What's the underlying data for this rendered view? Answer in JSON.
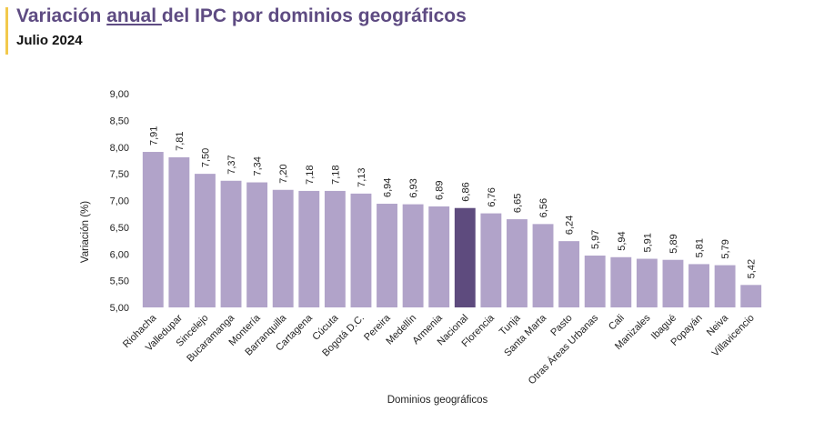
{
  "header": {
    "title_before": "Variación ",
    "title_highlight": "anual ",
    "title_after": "del IPC por dominios geográficos",
    "subtitle": "Julio 2024"
  },
  "colors": {
    "bar": "#B1A3C9",
    "highlight_bar": "#5E4B7E",
    "title": "#5E4B82",
    "accent": "#F2C94C"
  },
  "chart_data": {
    "type": "bar",
    "title": "Variación anual del IPC por dominios geográficos",
    "subtitle": "Julio 2024",
    "xlabel": "Dominios geográficos",
    "ylabel": "Variación (%)",
    "ylim": [
      5.0,
      9.0
    ],
    "yticks": [
      "5,00",
      "5,50",
      "6,00",
      "6,50",
      "7,00",
      "7,50",
      "8,00",
      "8,50",
      "9,00"
    ],
    "grid": false,
    "highlight_category": "Nacional",
    "categories": [
      "Riohacha",
      "Valledupar",
      "Sincelejo",
      "Bucaramanga",
      "Montería",
      "Barranquilla",
      "Cartagena",
      "Cúcuta",
      "Bogotá D.C.",
      "Pereira",
      "Medellín",
      "Armenia",
      "Nacional",
      "Florencia",
      "Tunja",
      "Santa Marta",
      "Pasto",
      "Otras Áreas Urbanas",
      "Cali",
      "Manizales",
      "Ibagué",
      "Popayán",
      "Neiva",
      "Villavicencio"
    ],
    "values": [
      7.91,
      7.81,
      7.5,
      7.37,
      7.34,
      7.2,
      7.18,
      7.18,
      7.13,
      6.94,
      6.93,
      6.89,
      6.86,
      6.76,
      6.65,
      6.56,
      6.24,
      5.97,
      5.94,
      5.91,
      5.89,
      5.81,
      5.79,
      5.42
    ],
    "value_labels": [
      "7,91",
      "7,81",
      "7,50",
      "7,37",
      "7,34",
      "7,20",
      "7,18",
      "7,18",
      "7,13",
      "6,94",
      "6,93",
      "6,89",
      "6,86",
      "6,76",
      "6,65",
      "6,56",
      "6,24",
      "5,97",
      "5,94",
      "5,91",
      "5,89",
      "5,81",
      "5,79",
      "5,42"
    ]
  }
}
